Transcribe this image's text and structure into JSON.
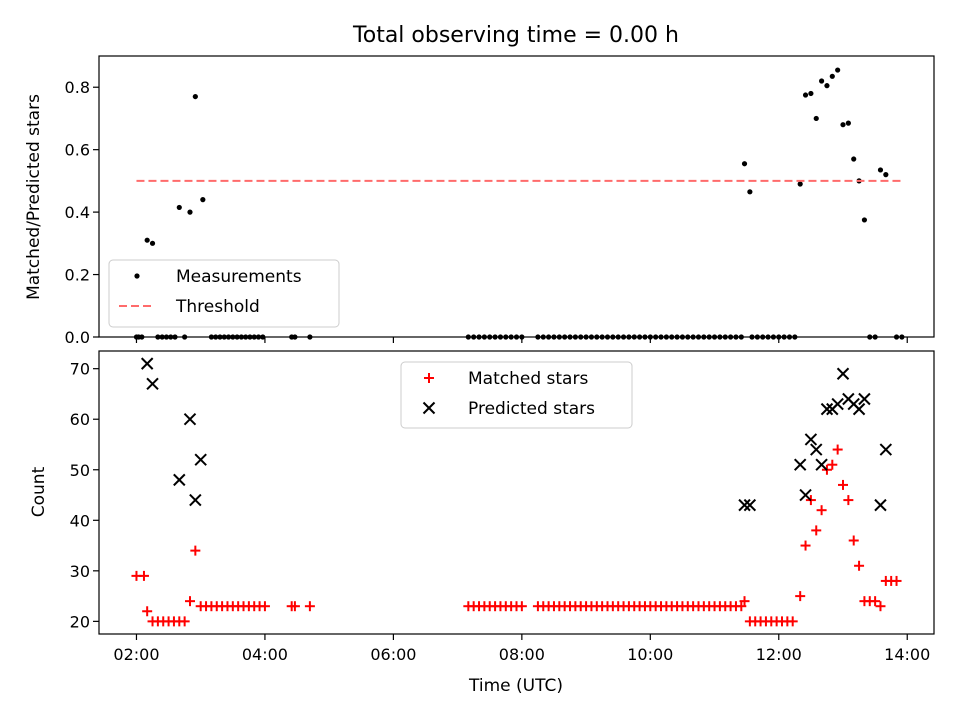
{
  "chart_data": [
    {
      "type": "scatter",
      "title": "Total observing time = 0.00 h",
      "ylabel": "Matched/Predicted stars",
      "xlim": [
        "01:25",
        "14:25"
      ],
      "ylim": [
        0,
        0.9
      ],
      "yticks": [
        "0.0",
        "0.2",
        "0.4",
        "0.6",
        "0.8"
      ],
      "grid": false,
      "legend_placement": "lower-left",
      "series": [
        {
          "name": "Measurements",
          "marker": "dot",
          "color": "#000000",
          "points": [
            [
              "02:00",
              0
            ],
            [
              "02:02",
              0
            ],
            [
              "02:05",
              0
            ],
            [
              "02:10",
              0.31
            ],
            [
              "02:15",
              0.3
            ],
            [
              "02:20",
              0
            ],
            [
              "02:24",
              0
            ],
            [
              "02:28",
              0
            ],
            [
              "02:32",
              0
            ],
            [
              "02:36",
              0
            ],
            [
              "02:40",
              0.415
            ],
            [
              "02:50",
              0.4
            ],
            [
              "02:55",
              0.77
            ],
            [
              "03:02",
              0.44
            ],
            [
              "02:45",
              0
            ],
            [
              "03:10",
              0
            ],
            [
              "03:14",
              0
            ],
            [
              "03:18",
              0
            ],
            [
              "03:22",
              0
            ],
            [
              "03:26",
              0
            ],
            [
              "03:30",
              0
            ],
            [
              "03:34",
              0
            ],
            [
              "03:38",
              0
            ],
            [
              "03:42",
              0
            ],
            [
              "03:46",
              0
            ],
            [
              "03:50",
              0
            ],
            [
              "03:54",
              0
            ],
            [
              "03:58",
              0
            ],
            [
              "04:25",
              0
            ],
            [
              "04:28",
              0
            ],
            [
              "04:42",
              0
            ],
            [
              "07:10",
              0
            ],
            [
              "07:15",
              0
            ],
            [
              "07:20",
              0
            ],
            [
              "07:25",
              0
            ],
            [
              "07:30",
              0
            ],
            [
              "07:35",
              0
            ],
            [
              "07:40",
              0
            ],
            [
              "07:45",
              0
            ],
            [
              "07:50",
              0
            ],
            [
              "07:55",
              0
            ],
            [
              "08:00",
              0
            ],
            [
              "08:15",
              0
            ],
            [
              "08:20",
              0
            ],
            [
              "08:25",
              0
            ],
            [
              "08:30",
              0
            ],
            [
              "08:35",
              0
            ],
            [
              "08:40",
              0
            ],
            [
              "08:45",
              0
            ],
            [
              "08:50",
              0
            ],
            [
              "08:55",
              0
            ],
            [
              "09:00",
              0
            ],
            [
              "09:05",
              0
            ],
            [
              "09:10",
              0
            ],
            [
              "09:15",
              0
            ],
            [
              "09:20",
              0
            ],
            [
              "09:25",
              0
            ],
            [
              "09:30",
              0
            ],
            [
              "09:35",
              0
            ],
            [
              "09:40",
              0
            ],
            [
              "09:45",
              0
            ],
            [
              "09:50",
              0
            ],
            [
              "09:55",
              0
            ],
            [
              "10:00",
              0
            ],
            [
              "10:05",
              0
            ],
            [
              "10:10",
              0
            ],
            [
              "10:15",
              0
            ],
            [
              "10:20",
              0
            ],
            [
              "10:25",
              0
            ],
            [
              "10:30",
              0
            ],
            [
              "10:35",
              0
            ],
            [
              "10:40",
              0
            ],
            [
              "10:45",
              0
            ],
            [
              "10:50",
              0
            ],
            [
              "10:55",
              0
            ],
            [
              "11:00",
              0
            ],
            [
              "11:05",
              0
            ],
            [
              "11:10",
              0
            ],
            [
              "11:15",
              0
            ],
            [
              "11:20",
              0
            ],
            [
              "11:25",
              0
            ],
            [
              "11:28",
              0.555
            ],
            [
              "11:33",
              0.465
            ],
            [
              "11:35",
              0
            ],
            [
              "11:40",
              0
            ],
            [
              "11:45",
              0
            ],
            [
              "11:50",
              0
            ],
            [
              "11:55",
              0
            ],
            [
              "12:00",
              0
            ],
            [
              "12:05",
              0
            ],
            [
              "12:10",
              0
            ],
            [
              "12:15",
              0
            ],
            [
              "12:20",
              0.49
            ],
            [
              "12:25",
              0.775
            ],
            [
              "12:30",
              0.78
            ],
            [
              "12:35",
              0.7
            ],
            [
              "12:40",
              0.82
            ],
            [
              "12:45",
              0.805
            ],
            [
              "12:50",
              0.835
            ],
            [
              "12:55",
              0.855
            ],
            [
              "13:00",
              0.68
            ],
            [
              "13:05",
              0.685
            ],
            [
              "13:10",
              0.57
            ],
            [
              "13:15",
              0.5
            ],
            [
              "13:20",
              0.375
            ],
            [
              "13:25",
              0
            ],
            [
              "13:30",
              0
            ],
            [
              "13:35",
              0.535
            ],
            [
              "13:40",
              0.52
            ],
            [
              "13:50",
              0
            ],
            [
              "13:55",
              0
            ]
          ]
        },
        {
          "name": "Threshold",
          "marker": "dashed-line",
          "color": "#ff6b6b",
          "points": [
            [
              "02:00",
              0.5
            ],
            [
              "13:55",
              0.5
            ]
          ]
        }
      ]
    },
    {
      "type": "scatter",
      "xlabel": "Time (UTC)",
      "ylabel": "Count",
      "xlim": [
        "01:25",
        "14:25"
      ],
      "ylim": [
        17.5,
        73.5
      ],
      "xticks": [
        "02:00",
        "04:00",
        "06:00",
        "08:00",
        "10:00",
        "12:00",
        "14:00"
      ],
      "yticks": [
        "20",
        "30",
        "40",
        "50",
        "60",
        "70"
      ],
      "grid": false,
      "legend_placement": "top-center",
      "series": [
        {
          "name": "Matched stars",
          "marker": "plus",
          "color": "#ff0000",
          "points": [
            [
              "02:00",
              29
            ],
            [
              "02:07",
              29
            ],
            [
              "02:10",
              22
            ],
            [
              "02:15",
              20
            ],
            [
              "02:20",
              20
            ],
            [
              "02:25",
              20
            ],
            [
              "02:30",
              20
            ],
            [
              "02:35",
              20
            ],
            [
              "02:40",
              20
            ],
            [
              "02:45",
              20
            ],
            [
              "02:50",
              24
            ],
            [
              "02:55",
              34
            ],
            [
              "03:00",
              23
            ],
            [
              "03:05",
              23
            ],
            [
              "03:10",
              23
            ],
            [
              "03:15",
              23
            ],
            [
              "03:20",
              23
            ],
            [
              "03:25",
              23
            ],
            [
              "03:30",
              23
            ],
            [
              "03:35",
              23
            ],
            [
              "03:40",
              23
            ],
            [
              "03:45",
              23
            ],
            [
              "03:50",
              23
            ],
            [
              "03:55",
              23
            ],
            [
              "04:00",
              23
            ],
            [
              "04:25",
              23
            ],
            [
              "04:28",
              23
            ],
            [
              "04:42",
              23
            ],
            [
              "07:10",
              23
            ],
            [
              "07:15",
              23
            ],
            [
              "07:20",
              23
            ],
            [
              "07:25",
              23
            ],
            [
              "07:30",
              23
            ],
            [
              "07:35",
              23
            ],
            [
              "07:40",
              23
            ],
            [
              "07:45",
              23
            ],
            [
              "07:50",
              23
            ],
            [
              "07:55",
              23
            ],
            [
              "08:00",
              23
            ],
            [
              "08:15",
              23
            ],
            [
              "08:20",
              23
            ],
            [
              "08:25",
              23
            ],
            [
              "08:30",
              23
            ],
            [
              "08:35",
              23
            ],
            [
              "08:40",
              23
            ],
            [
              "08:45",
              23
            ],
            [
              "08:50",
              23
            ],
            [
              "08:55",
              23
            ],
            [
              "09:00",
              23
            ],
            [
              "09:05",
              23
            ],
            [
              "09:10",
              23
            ],
            [
              "09:15",
              23
            ],
            [
              "09:20",
              23
            ],
            [
              "09:25",
              23
            ],
            [
              "09:30",
              23
            ],
            [
              "09:35",
              23
            ],
            [
              "09:40",
              23
            ],
            [
              "09:45",
              23
            ],
            [
              "09:50",
              23
            ],
            [
              "09:55",
              23
            ],
            [
              "10:00",
              23
            ],
            [
              "10:05",
              23
            ],
            [
              "10:10",
              23
            ],
            [
              "10:15",
              23
            ],
            [
              "10:20",
              23
            ],
            [
              "10:25",
              23
            ],
            [
              "10:30",
              23
            ],
            [
              "10:35",
              23
            ],
            [
              "10:40",
              23
            ],
            [
              "10:45",
              23
            ],
            [
              "10:50",
              23
            ],
            [
              "10:55",
              23
            ],
            [
              "11:00",
              23
            ],
            [
              "11:05",
              23
            ],
            [
              "11:10",
              23
            ],
            [
              "11:15",
              23
            ],
            [
              "11:20",
              23
            ],
            [
              "11:25",
              23
            ],
            [
              "11:28",
              24
            ],
            [
              "11:33",
              20
            ],
            [
              "11:38",
              20
            ],
            [
              "11:43",
              20
            ],
            [
              "11:48",
              20
            ],
            [
              "11:53",
              20
            ],
            [
              "11:58",
              20
            ],
            [
              "12:03",
              20
            ],
            [
              "12:08",
              20
            ],
            [
              "12:13",
              20
            ],
            [
              "12:20",
              25
            ],
            [
              "12:25",
              35
            ],
            [
              "12:30",
              44
            ],
            [
              "12:35",
              38
            ],
            [
              "12:40",
              42
            ],
            [
              "12:45",
              50
            ],
            [
              "12:50",
              51
            ],
            [
              "12:55",
              54
            ],
            [
              "13:00",
              47
            ],
            [
              "13:05",
              44
            ],
            [
              "13:10",
              36
            ],
            [
              "13:15",
              31
            ],
            [
              "13:20",
              24
            ],
            [
              "13:25",
              24
            ],
            [
              "13:30",
              24
            ],
            [
              "13:35",
              23
            ],
            [
              "13:40",
              28
            ],
            [
              "13:45",
              28
            ],
            [
              "13:50",
              28
            ]
          ]
        },
        {
          "name": "Predicted stars",
          "marker": "x",
          "color": "#000000",
          "points": [
            [
              "02:10",
              71
            ],
            [
              "02:15",
              67
            ],
            [
              "02:40",
              48
            ],
            [
              "02:50",
              60
            ],
            [
              "02:55",
              44
            ],
            [
              "03:00",
              52
            ],
            [
              "11:28",
              43
            ],
            [
              "11:33",
              43
            ],
            [
              "12:20",
              51
            ],
            [
              "12:25",
              45
            ],
            [
              "12:30",
              56
            ],
            [
              "12:35",
              54
            ],
            [
              "12:40",
              51
            ],
            [
              "12:45",
              62
            ],
            [
              "12:50",
              62
            ],
            [
              "12:55",
              63
            ],
            [
              "13:00",
              69
            ],
            [
              "13:05",
              64
            ],
            [
              "13:10",
              63
            ],
            [
              "13:15",
              62
            ],
            [
              "13:20",
              64
            ],
            [
              "13:35",
              43
            ],
            [
              "13:40",
              54
            ]
          ]
        }
      ]
    }
  ]
}
